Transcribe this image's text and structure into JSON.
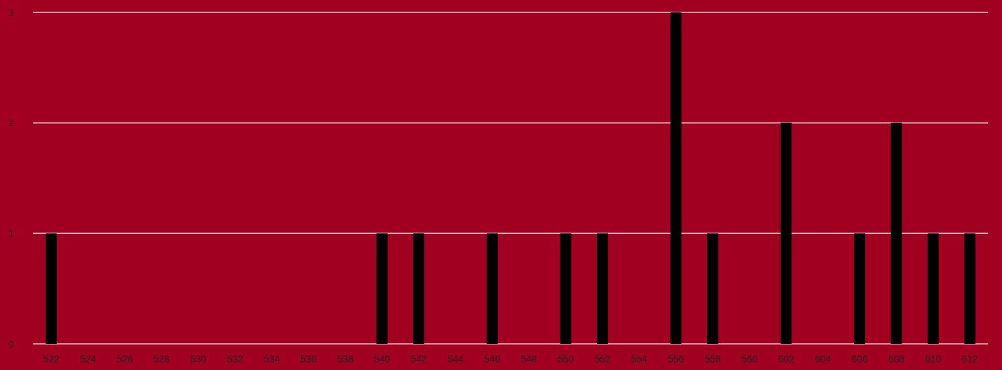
{
  "chart_data": {
    "type": "bar",
    "categories": [
      "522",
      "524",
      "526",
      "528",
      "530",
      "532",
      "534",
      "536",
      "538",
      "540",
      "542",
      "544",
      "546",
      "548",
      "550",
      "552",
      "554",
      "556",
      "558",
      "560",
      "602",
      "604",
      "606",
      "608",
      "610",
      "612"
    ],
    "values": [
      1,
      0,
      0,
      0,
      0,
      0,
      0,
      0,
      0,
      1,
      1,
      0,
      1,
      0,
      1,
      1,
      0,
      3,
      1,
      0,
      2,
      0,
      1,
      2,
      1,
      1
    ],
    "color": "#000000",
    "ylim": [
      0,
      3
    ],
    "yticks": [
      0,
      1,
      2,
      3
    ],
    "grid": "y"
  }
}
